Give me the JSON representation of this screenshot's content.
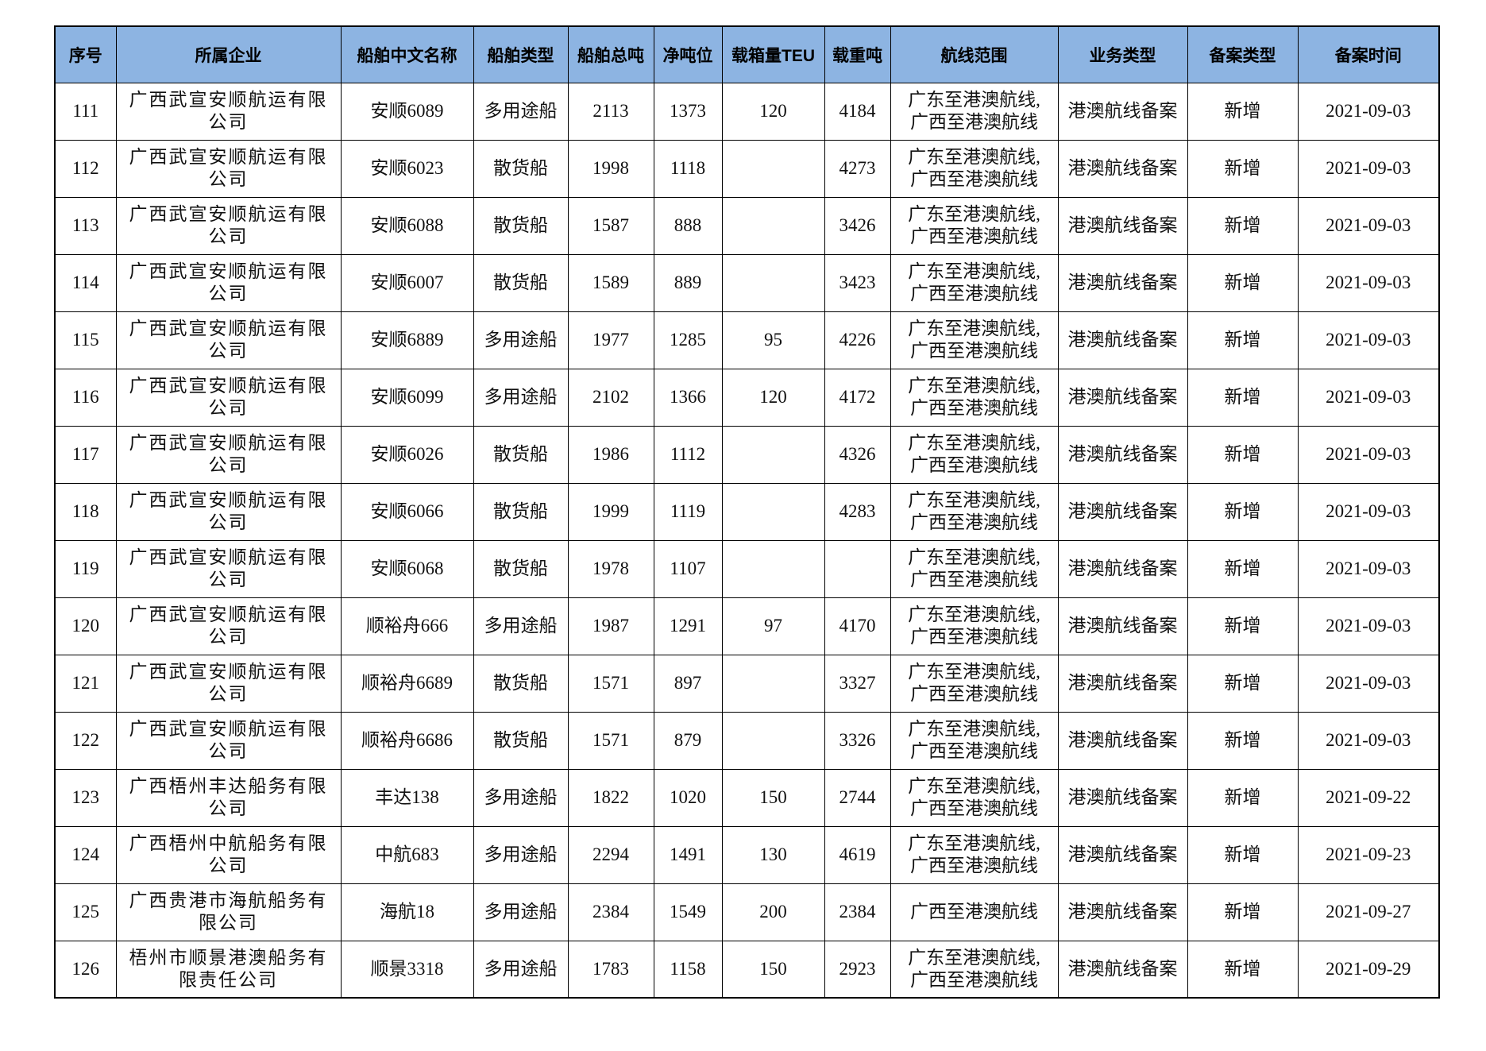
{
  "headers": [
    "序号",
    "所属企业",
    "船舶中文名称",
    "船舶类型",
    "船舶总吨",
    "净吨位",
    "载箱量TEU",
    "载重吨",
    "航线范围",
    "业务类型",
    "备案类型",
    "备案时间"
  ],
  "rows": [
    {
      "no": "111",
      "company": "广西武宣安顺航运有限公司",
      "ship": "安顺6089",
      "type": "多用途船",
      "gt": "2113",
      "nt": "1373",
      "teu": "120",
      "dwt": "4184",
      "route": "广东至港澳航线,广西至港澳航线",
      "business": "港澳航线备案",
      "record": "新增",
      "date": "2021-09-03"
    },
    {
      "no": "112",
      "company": "广西武宣安顺航运有限公司",
      "ship": "安顺6023",
      "type": "散货船",
      "gt": "1998",
      "nt": "1118",
      "teu": "",
      "dwt": "4273",
      "route": "广东至港澳航线,广西至港澳航线",
      "business": "港澳航线备案",
      "record": "新增",
      "date": "2021-09-03"
    },
    {
      "no": "113",
      "company": "广西武宣安顺航运有限公司",
      "ship": "安顺6088",
      "type": "散货船",
      "gt": "1587",
      "nt": "888",
      "teu": "",
      "dwt": "3426",
      "route": "广东至港澳航线,广西至港澳航线",
      "business": "港澳航线备案",
      "record": "新增",
      "date": "2021-09-03"
    },
    {
      "no": "114",
      "company": "广西武宣安顺航运有限公司",
      "ship": "安顺6007",
      "type": "散货船",
      "gt": "1589",
      "nt": "889",
      "teu": "",
      "dwt": "3423",
      "route": "广东至港澳航线,广西至港澳航线",
      "business": "港澳航线备案",
      "record": "新增",
      "date": "2021-09-03"
    },
    {
      "no": "115",
      "company": "广西武宣安顺航运有限公司",
      "ship": "安顺6889",
      "type": "多用途船",
      "gt": "1977",
      "nt": "1285",
      "teu": "95",
      "dwt": "4226",
      "route": "广东至港澳航线,广西至港澳航线",
      "business": "港澳航线备案",
      "record": "新增",
      "date": "2021-09-03"
    },
    {
      "no": "116",
      "company": "广西武宣安顺航运有限公司",
      "ship": "安顺6099",
      "type": "多用途船",
      "gt": "2102",
      "nt": "1366",
      "teu": "120",
      "dwt": "4172",
      "route": "广东至港澳航线,广西至港澳航线",
      "business": "港澳航线备案",
      "record": "新增",
      "date": "2021-09-03"
    },
    {
      "no": "117",
      "company": "广西武宣安顺航运有限公司",
      "ship": "安顺6026",
      "type": "散货船",
      "gt": "1986",
      "nt": "1112",
      "teu": "",
      "dwt": "4326",
      "route": "广东至港澳航线,广西至港澳航线",
      "business": "港澳航线备案",
      "record": "新增",
      "date": "2021-09-03"
    },
    {
      "no": "118",
      "company": "广西武宣安顺航运有限公司",
      "ship": "安顺6066",
      "type": "散货船",
      "gt": "1999",
      "nt": "1119",
      "teu": "",
      "dwt": "4283",
      "route": "广东至港澳航线,广西至港澳航线",
      "business": "港澳航线备案",
      "record": "新增",
      "date": "2021-09-03"
    },
    {
      "no": "119",
      "company": "广西武宣安顺航运有限公司",
      "ship": "安顺6068",
      "type": "散货船",
      "gt": "1978",
      "nt": "1107",
      "teu": "",
      "dwt": "",
      "route": "广东至港澳航线,广西至港澳航线",
      "business": "港澳航线备案",
      "record": "新增",
      "date": "2021-09-03"
    },
    {
      "no": "120",
      "company": "广西武宣安顺航运有限公司",
      "ship": "顺裕舟666",
      "type": "多用途船",
      "gt": "1987",
      "nt": "1291",
      "teu": "97",
      "dwt": "4170",
      "route": "广东至港澳航线,广西至港澳航线",
      "business": "港澳航线备案",
      "record": "新增",
      "date": "2021-09-03"
    },
    {
      "no": "121",
      "company": "广西武宣安顺航运有限公司",
      "ship": "顺裕舟6689",
      "type": "散货船",
      "gt": "1571",
      "nt": "897",
      "teu": "",
      "dwt": "3327",
      "route": "广东至港澳航线,广西至港澳航线",
      "business": "港澳航线备案",
      "record": "新增",
      "date": "2021-09-03"
    },
    {
      "no": "122",
      "company": "广西武宣安顺航运有限公司",
      "ship": "顺裕舟6686",
      "type": "散货船",
      "gt": "1571",
      "nt": "879",
      "teu": "",
      "dwt": "3326",
      "route": "广东至港澳航线,广西至港澳航线",
      "business": "港澳航线备案",
      "record": "新增",
      "date": "2021-09-03"
    },
    {
      "no": "123",
      "company": "广西梧州丰达船务有限公司",
      "ship": "丰达138",
      "type": "多用途船",
      "gt": "1822",
      "nt": "1020",
      "teu": "150",
      "dwt": "2744",
      "route": "广东至港澳航线,广西至港澳航线",
      "business": "港澳航线备案",
      "record": "新增",
      "date": "2021-09-22"
    },
    {
      "no": "124",
      "company": "广西梧州中航船务有限公司",
      "ship": "中航683",
      "type": "多用途船",
      "gt": "2294",
      "nt": "1491",
      "teu": "130",
      "dwt": "4619",
      "route": "广东至港澳航线,广西至港澳航线",
      "business": "港澳航线备案",
      "record": "新增",
      "date": "2021-09-23"
    },
    {
      "no": "125",
      "company": "广西贵港市海航船务有限公司",
      "ship": "海航18",
      "type": "多用途船",
      "gt": "2384",
      "nt": "1549",
      "teu": "200",
      "dwt": "2384",
      "route": "广西至港澳航线",
      "business": "港澳航线备案",
      "record": "新增",
      "date": "2021-09-27"
    },
    {
      "no": "126",
      "company": "梧州市顺景港澳船务有限责任公司",
      "ship": "顺景3318",
      "type": "多用途船",
      "gt": "1783",
      "nt": "1158",
      "teu": "150",
      "dwt": "2923",
      "route": "广东至港澳航线,广西至港澳航线",
      "business": "港澳航线备案",
      "record": "新增",
      "date": "2021-09-29"
    }
  ],
  "colors": {
    "header_bg": "#8db4e2"
  }
}
